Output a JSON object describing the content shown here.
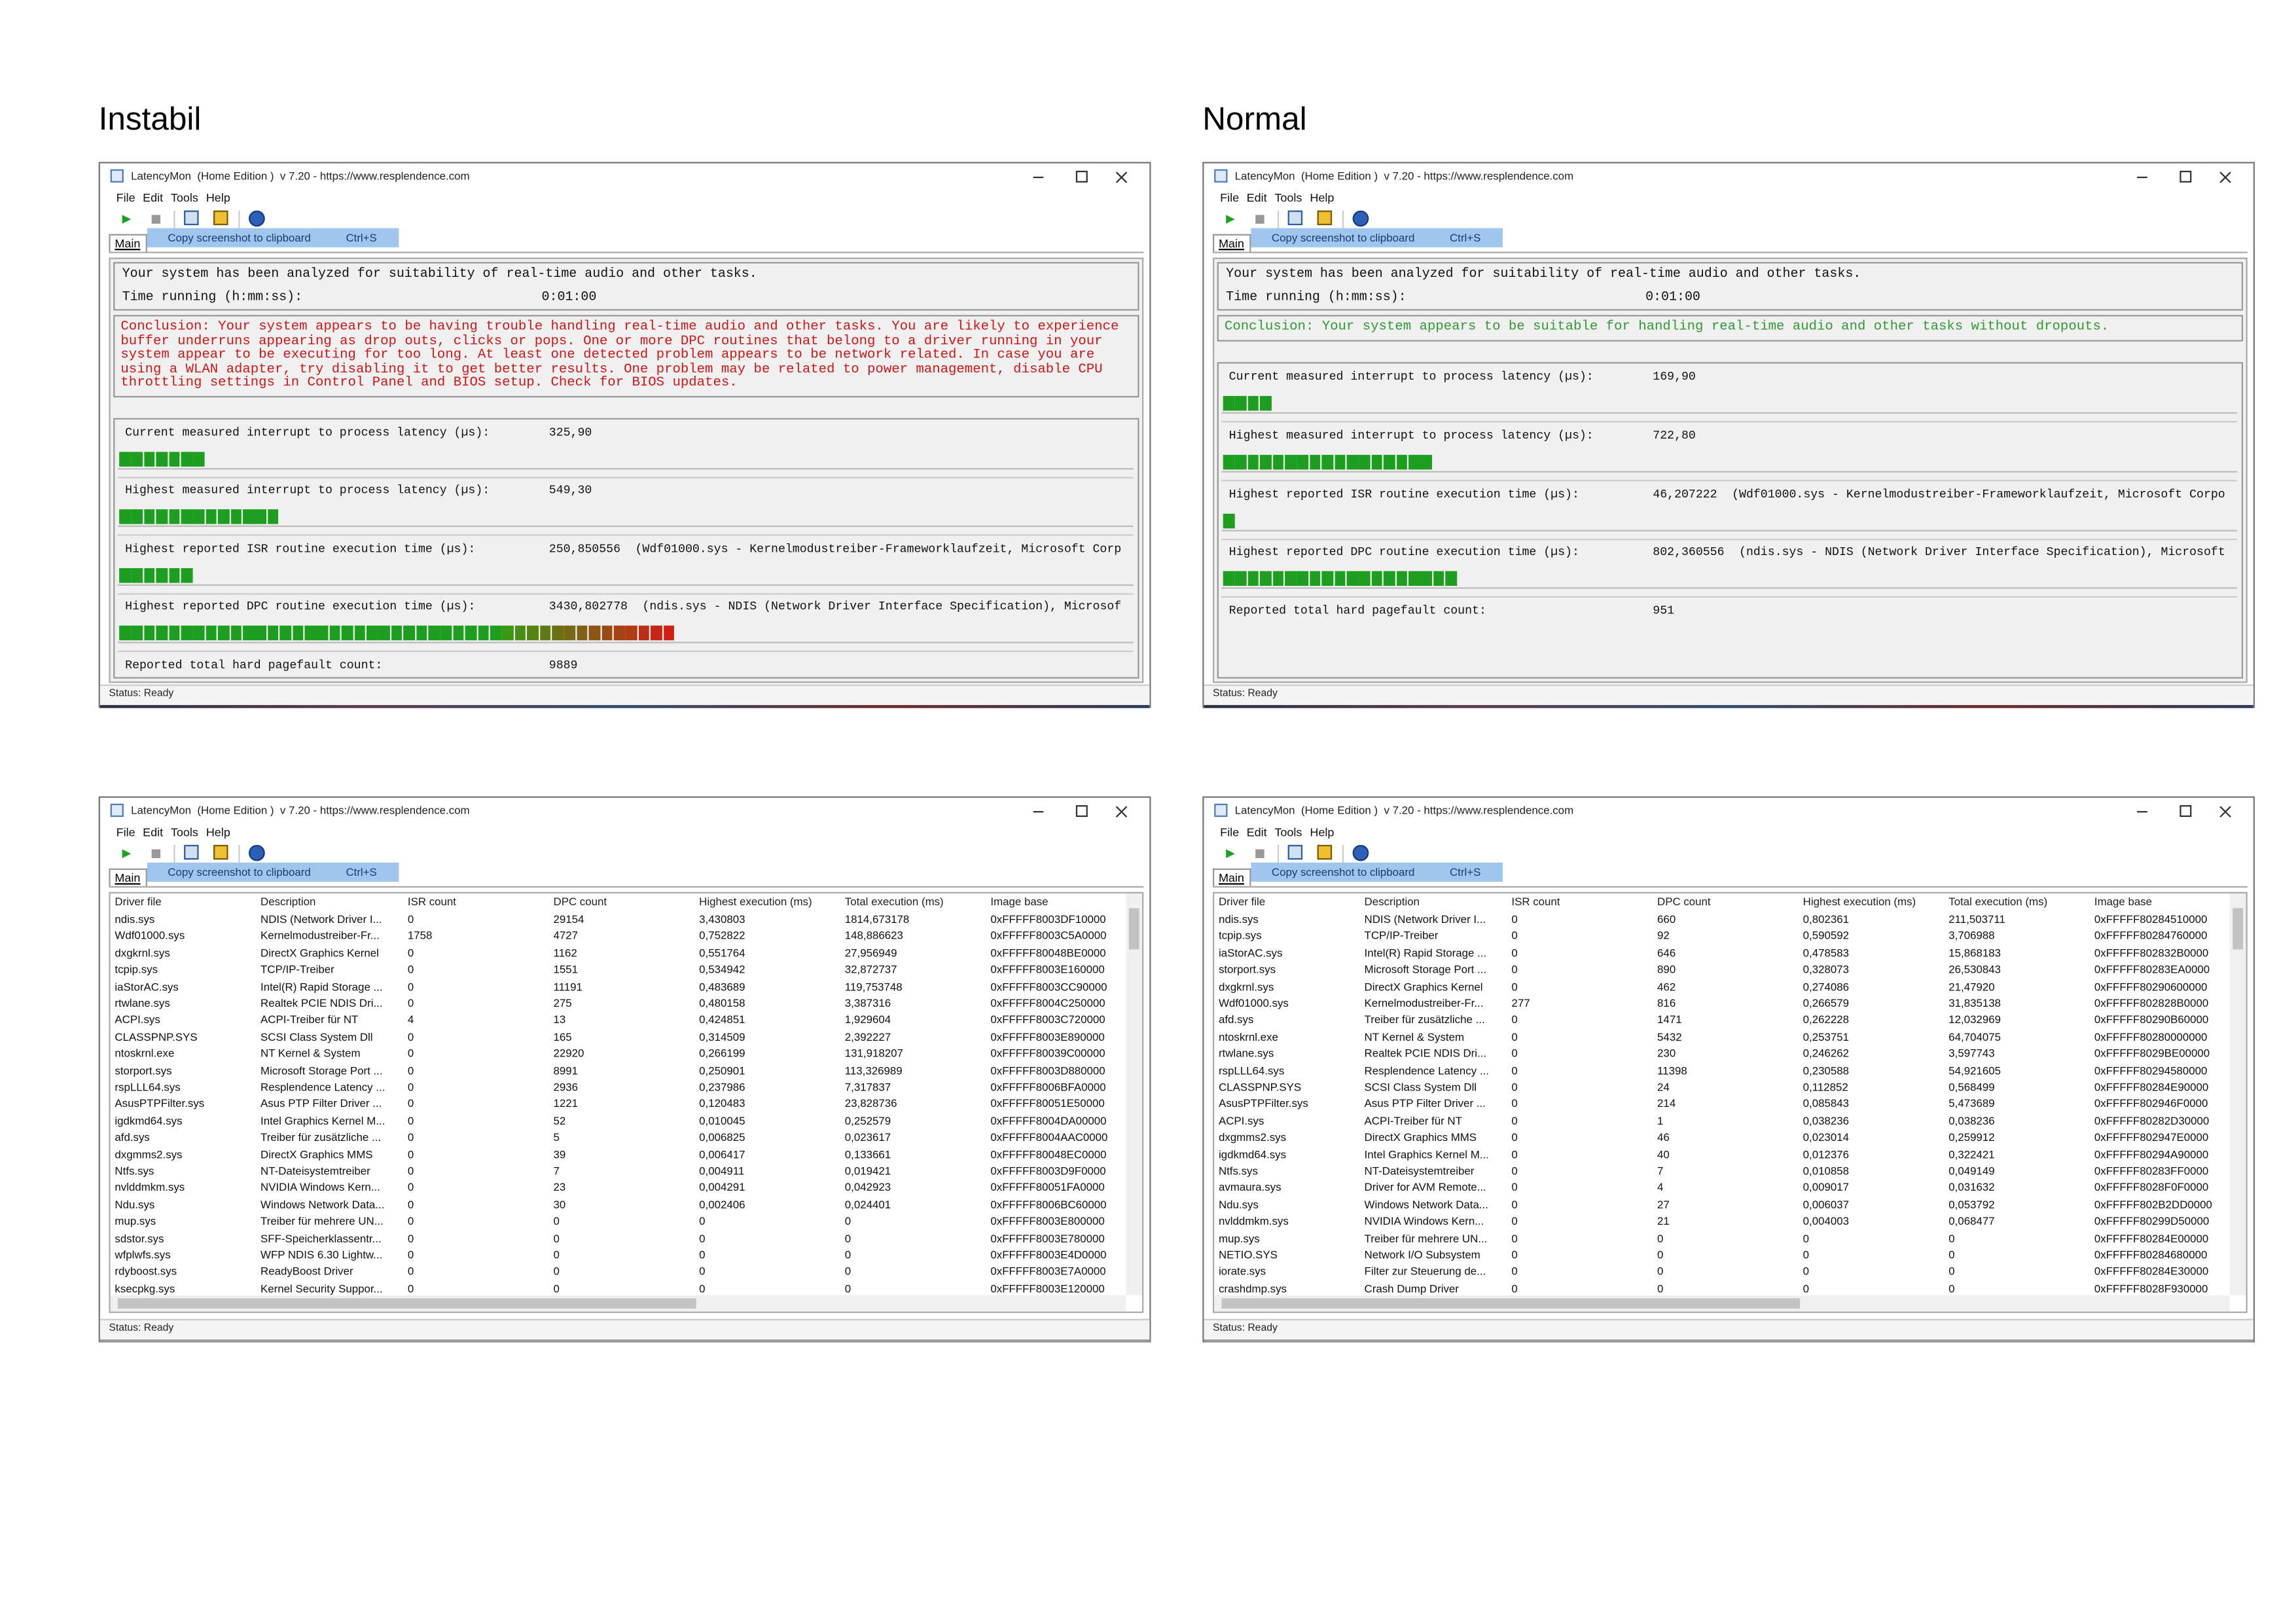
{
  "window": {
    "title": "LatencyMon  (Home Edition )  v 7.20 - https://www.resplendence.com",
    "menu": [
      "File",
      "Edit",
      "Tools",
      "Help"
    ],
    "tab": "Main",
    "tooltip": "Copy screenshot to clipboard",
    "tooltip_shortcut": "Ctrl+S",
    "status": "Status: Ready",
    "intro": "Your system has been analyzed for suitability of real-time audio and other tasks.",
    "time_label": "Time running (h:mm:ss):"
  },
  "table_columns": [
    "Driver file",
    "Description",
    "ISR count",
    "DPC count",
    "Highest execution (ms)",
    "Total execution (ms)",
    "Image base"
  ],
  "instabil": {
    "heading": "Instabil",
    "time": "0:01:00",
    "conclusion": [
      "Conclusion: Your system appears to be having trouble handling real-time audio and other tasks. You are likely to experience",
      "buffer underruns appearing as drop outs, clicks or pops. One or more DPC routines that belong to a driver running in your",
      "system appear to be executing for too long. At least one detected problem appears to be network related. In case you are",
      "using a WLAN adapter, try disabling it to get better results. One problem may be related to power management, disable CPU",
      "throttling settings in Control Panel and BIOS setup. Check for BIOS updates."
    ],
    "metrics": [
      {
        "label": "Current measured interrupt to process latency (µs):",
        "value": "325,90"
      },
      {
        "label": "Highest measured interrupt to process latency (µs):",
        "value": "549,30"
      },
      {
        "label": "Highest reported ISR routine execution time (µs):",
        "value": "250,850556",
        "detail": "(Wdf01000.sys - Kernelmodustreiber-Frameworklaufzeit, Microsoft Corp"
      },
      {
        "label": "Highest reported DPC routine execution time (µs):",
        "value": "3430,802778",
        "detail": "(ndis.sys - NDIS (Network Driver Interface Specification), Microsof"
      },
      {
        "label": "Reported total hard pagefault count:",
        "value": "9889"
      }
    ],
    "drivers": [
      [
        "ndis.sys",
        "NDIS (Network Driver I...",
        "0",
        "29154",
        "3,430803",
        "1814,673178",
        "0xFFFFF8003DF10000"
      ],
      [
        "Wdf01000.sys",
        "Kernelmodustreiber-Fr...",
        "1758",
        "4727",
        "0,752822",
        "148,886623",
        "0xFFFFF8003C5A0000"
      ],
      [
        "dxgkrnl.sys",
        "DirectX Graphics Kernel",
        "0",
        "1162",
        "0,551764",
        "27,956949",
        "0xFFFFF80048BE0000"
      ],
      [
        "tcpip.sys",
        "TCP/IP-Treiber",
        "0",
        "1551",
        "0,534942",
        "32,872737",
        "0xFFFFF8003E160000"
      ],
      [
        "iaStorAC.sys",
        "Intel(R) Rapid Storage ...",
        "0",
        "11191",
        "0,483689",
        "119,753748",
        "0xFFFFF8003CC90000"
      ],
      [
        "rtwlane.sys",
        "Realtek PCIE NDIS Dri...",
        "0",
        "275",
        "0,480158",
        "3,387316",
        "0xFFFFF8004C250000"
      ],
      [
        "ACPI.sys",
        "ACPI-Treiber für NT",
        "4",
        "13",
        "0,424851",
        "1,929604",
        "0xFFFFF8003C720000"
      ],
      [
        "CLASSPNP.SYS",
        "SCSI Class System Dll",
        "0",
        "165",
        "0,314509",
        "2,392227",
        "0xFFFFF8003E890000"
      ],
      [
        "ntoskrnl.exe",
        "NT Kernel & System",
        "0",
        "22920",
        "0,266199",
        "131,918207",
        "0xFFFFF80039C00000"
      ],
      [
        "storport.sys",
        "Microsoft Storage Port ...",
        "0",
        "8991",
        "0,250901",
        "113,326989",
        "0xFFFFF8003D880000"
      ],
      [
        "rspLLL64.sys",
        "Resplendence Latency ...",
        "0",
        "2936",
        "0,237986",
        "7,317837",
        "0xFFFFF8006BFA0000"
      ],
      [
        "AsusPTPFilter.sys",
        "Asus PTP Filter Driver ...",
        "0",
        "1221",
        "0,120483",
        "23,828736",
        "0xFFFFF80051E50000"
      ],
      [
        "igdkmd64.sys",
        "Intel Graphics Kernel M...",
        "0",
        "52",
        "0,010045",
        "0,252579",
        "0xFFFFF8004DA00000"
      ],
      [
        "afd.sys",
        "Treiber für zusätzliche ...",
        "0",
        "5",
        "0,006825",
        "0,023617",
        "0xFFFFF8004AAC0000"
      ],
      [
        "dxgmms2.sys",
        "DirectX Graphics MMS",
        "0",
        "39",
        "0,006417",
        "0,133661",
        "0xFFFFF80048EC0000"
      ],
      [
        "Ntfs.sys",
        "NT-Dateisystemtreiber",
        "0",
        "7",
        "0,004911",
        "0,019421",
        "0xFFFFF8003D9F0000"
      ],
      [
        "nvlddmkm.sys",
        "NVIDIA Windows Kern...",
        "0",
        "23",
        "0,004291",
        "0,042923",
        "0xFFFFF80051FA0000"
      ],
      [
        "Ndu.sys",
        "Windows Network Data...",
        "0",
        "30",
        "0,002406",
        "0,024401",
        "0xFFFFF8006BC60000"
      ],
      [
        "mup.sys",
        "Treiber für mehrere UN...",
        "0",
        "0",
        "0",
        "0",
        "0xFFFFF8003E800000"
      ],
      [
        "sdstor.sys",
        "SFF-Speicherklassentr...",
        "0",
        "0",
        "0",
        "0",
        "0xFFFFF8003E780000"
      ],
      [
        "wfplwfs.sys",
        "WFP NDIS 6.30 Lightw...",
        "0",
        "0",
        "0",
        "0",
        "0xFFFFF8003E4D0000"
      ],
      [
        "rdyboost.sys",
        "ReadyBoost Driver",
        "0",
        "0",
        "0",
        "0",
        "0xFFFFF8003E7A0000"
      ],
      [
        "ksecpkg.sys",
        "Kernel Security Suppor...",
        "0",
        "0",
        "0",
        "0",
        "0xFFFFF8003E120000"
      ]
    ]
  },
  "normal": {
    "heading": "Normal",
    "time": "0:01:00",
    "conclusion": [
      "Conclusion: Your system appears to be suitable for handling real-time audio and other tasks without dropouts."
    ],
    "metrics": [
      {
        "label": "Current measured interrupt to process latency (µs):",
        "value": "169,90"
      },
      {
        "label": "Highest measured interrupt to process latency (µs):",
        "value": "722,80"
      },
      {
        "label": "Highest reported ISR routine execution time (µs):",
        "value": "46,207222",
        "detail": "(Wdf01000.sys - Kernelmodustreiber-Frameworklaufzeit, Microsoft Corpo"
      },
      {
        "label": "Highest reported DPC routine execution time (µs):",
        "value": "802,360556",
        "detail": "(ndis.sys - NDIS (Network Driver Interface Specification), Microsoft"
      },
      {
        "label": "Reported total hard pagefault count:",
        "value": "951"
      }
    ],
    "drivers": [
      [
        "ndis.sys",
        "NDIS (Network Driver I...",
        "0",
        "660",
        "0,802361",
        "211,503711",
        "0xFFFFF80284510000"
      ],
      [
        "tcpip.sys",
        "TCP/IP-Treiber",
        "0",
        "92",
        "0,590592",
        "3,706988",
        "0xFFFFF80284760000"
      ],
      [
        "iaStorAC.sys",
        "Intel(R) Rapid Storage ...",
        "0",
        "646",
        "0,478583",
        "15,868183",
        "0xFFFFF802832B0000"
      ],
      [
        "storport.sys",
        "Microsoft Storage Port ...",
        "0",
        "890",
        "0,328073",
        "26,530843",
        "0xFFFFF80283EA0000"
      ],
      [
        "dxgkrnl.sys",
        "DirectX Graphics Kernel",
        "0",
        "462",
        "0,274086",
        "21,47920",
        "0xFFFFF80290600000"
      ],
      [
        "Wdf01000.sys",
        "Kernelmodustreiber-Fr...",
        "277",
        "816",
        "0,266579",
        "31,835138",
        "0xFFFFF802828B0000"
      ],
      [
        "afd.sys",
        "Treiber für zusätzliche ...",
        "0",
        "1471",
        "0,262228",
        "12,032969",
        "0xFFFFF80290B60000"
      ],
      [
        "ntoskrnl.exe",
        "NT Kernel & System",
        "0",
        "5432",
        "0,253751",
        "64,704075",
        "0xFFFFF80280000000"
      ],
      [
        "rtwlane.sys",
        "Realtek PCIE NDIS Dri...",
        "0",
        "230",
        "0,246262",
        "3,597743",
        "0xFFFFF8029BE00000"
      ],
      [
        "rspLLL64.sys",
        "Resplendence Latency ...",
        "0",
        "11398",
        "0,230588",
        "54,921605",
        "0xFFFFF80294580000"
      ],
      [
        "CLASSPNP.SYS",
        "SCSI Class System Dll",
        "0",
        "24",
        "0,112852",
        "0,568499",
        "0xFFFFF80284E90000"
      ],
      [
        "AsusPTPFilter.sys",
        "Asus PTP Filter Driver ...",
        "0",
        "214",
        "0,085843",
        "5,473689",
        "0xFFFFF802946F0000"
      ],
      [
        "ACPI.sys",
        "ACPI-Treiber für NT",
        "0",
        "1",
        "0,038236",
        "0,038236",
        "0xFFFFF80282D30000"
      ],
      [
        "dxgmms2.sys",
        "DirectX Graphics MMS",
        "0",
        "46",
        "0,023014",
        "0,259912",
        "0xFFFFF802947E0000"
      ],
      [
        "igdkmd64.sys",
        "Intel Graphics Kernel M...",
        "0",
        "40",
        "0,012376",
        "0,322421",
        "0xFFFFF80294A90000"
      ],
      [
        "Ntfs.sys",
        "NT-Dateisystemtreiber",
        "0",
        "7",
        "0,010858",
        "0,049149",
        "0xFFFFF80283FF0000"
      ],
      [
        "avmaura.sys",
        "Driver for AVM Remote...",
        "0",
        "4",
        "0,009017",
        "0,031632",
        "0xFFFFF8028F0F0000"
      ],
      [
        "Ndu.sys",
        "Windows Network Data...",
        "0",
        "27",
        "0,006037",
        "0,053792",
        "0xFFFFF802B2DD0000"
      ],
      [
        "nvlddmkm.sys",
        "NVIDIA Windows Kern...",
        "0",
        "21",
        "0,004003",
        "0,068477",
        "0xFFFFF80299D50000"
      ],
      [
        "mup.sys",
        "Treiber für mehrere UN...",
        "0",
        "0",
        "0",
        "0",
        "0xFFFFF80284E00000"
      ],
      [
        "NETIO.SYS",
        "Network I/O Subsystem",
        "0",
        "0",
        "0",
        "0",
        "0xFFFFF80284680000"
      ],
      [
        "iorate.sys",
        "Filter zur Steuerung de...",
        "0",
        "0",
        "0",
        "0",
        "0xFFFFF80284E30000"
      ],
      [
        "crashdmp.sys",
        "Crash Dump Driver",
        "0",
        "0",
        "0",
        "0",
        "0xFFFFF8028F930000"
      ]
    ]
  }
}
